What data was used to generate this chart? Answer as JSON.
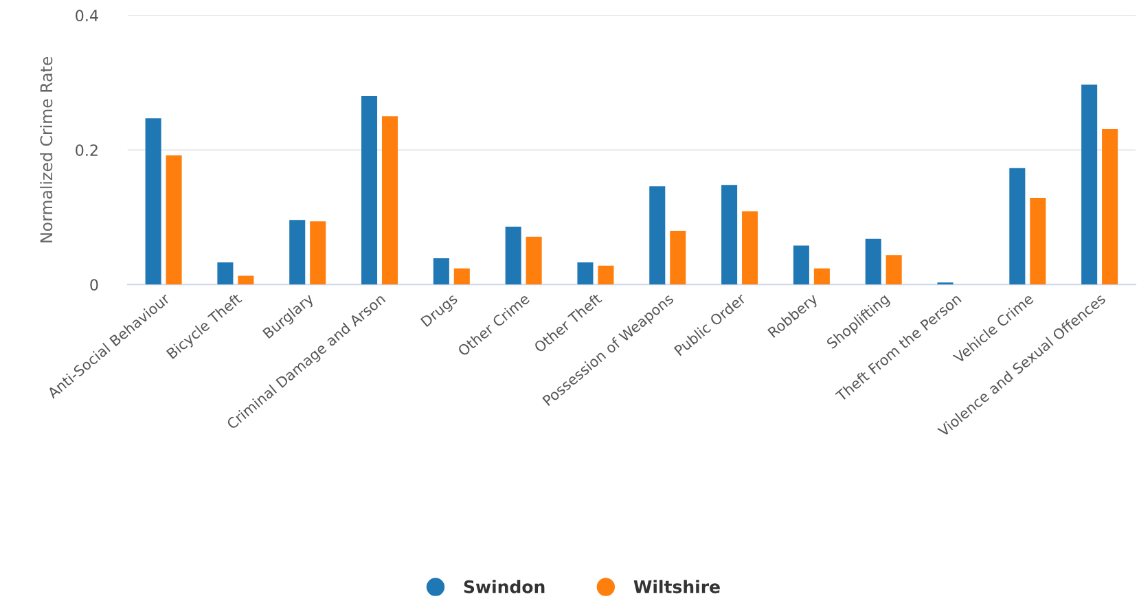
{
  "chart_data": {
    "type": "bar",
    "ylabel": "Normalized Crime Rate",
    "categories": [
      "Anti-Social Behaviour",
      "Bicycle Theft",
      "Burglary",
      "Criminal Damage and Arson",
      "Drugs",
      "Other Crime",
      "Other Theft",
      "Possession of Weapons",
      "Public Order",
      "Robbery",
      "Shoplifting",
      "Theft From the Person",
      "Vehicle Crime",
      "Violence and Sexual Offences"
    ],
    "series": [
      {
        "name": "Swindon",
        "color": "#1f77b4",
        "values": [
          0.247,
          0.033,
          0.096,
          0.28,
          0.039,
          0.086,
          0.033,
          0.146,
          0.148,
          0.058,
          0.068,
          0.003,
          0.173,
          0.297
        ]
      },
      {
        "name": "Wiltshire",
        "color": "#ff7f0e",
        "values": [
          0.192,
          0.013,
          0.094,
          0.25,
          0.024,
          0.071,
          0.028,
          0.08,
          0.109,
          0.024,
          0.044,
          0,
          0.129,
          0.231
        ]
      }
    ],
    "ylim": [
      0,
      0.4
    ],
    "yticks": [
      0,
      0.2,
      0.4
    ],
    "grid": "y",
    "legend": "bottom"
  }
}
